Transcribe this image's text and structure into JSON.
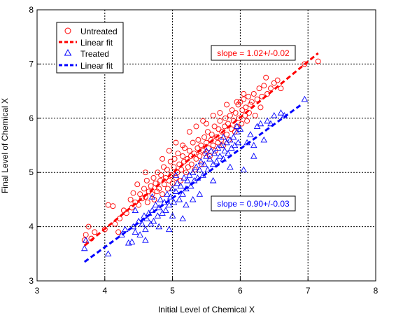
{
  "chart_data": {
    "type": "scatter",
    "xlabel": "Initial Level of Chemical X",
    "ylabel": "Final Level of Chemical X",
    "xlim": [
      3,
      8
    ],
    "ylim": [
      3,
      8
    ],
    "xticks": [
      "3",
      "4",
      "5",
      "6",
      "7",
      "8"
    ],
    "yticks": [
      "3",
      "4",
      "5",
      "6",
      "7",
      "8"
    ],
    "grid": true,
    "legend_position": "top-left",
    "legend": [
      {
        "label": "Untreated",
        "kind": "marker",
        "marker": "circle",
        "color": "#ff0000"
      },
      {
        "label": "Linear fit",
        "kind": "line",
        "color": "#ff0000"
      },
      {
        "label": "Treated",
        "kind": "marker",
        "marker": "triangle",
        "color": "#0000ff"
      },
      {
        "label": "Linear fit",
        "kind": "line",
        "color": "#0000ff"
      }
    ],
    "annotations": [
      {
        "text": "slope = 1.02+/-0.02",
        "color": "#ff0000",
        "x": 6.62,
        "y": 7.22
      },
      {
        "text": "slope = 0.90+/-0.03",
        "color": "#0000ff",
        "x": 6.62,
        "y": 4.44
      }
    ],
    "series": [
      {
        "name": "Untreated",
        "marker": "circle",
        "color": "#ff0000",
        "fit": {
          "x": [
            3.7,
            7.15
          ],
          "y": [
            3.65,
            7.2
          ]
        },
        "points": [
          [
            3.7,
            3.75
          ],
          [
            3.72,
            3.85
          ],
          [
            3.76,
            4.0
          ],
          [
            3.8,
            3.78
          ],
          [
            3.85,
            3.9
          ],
          [
            4.0,
            3.95
          ],
          [
            4.05,
            4.4
          ],
          [
            4.12,
            4.38
          ],
          [
            4.15,
            4.05
          ],
          [
            4.2,
            3.9
          ],
          [
            4.22,
            4.15
          ],
          [
            4.28,
            4.3
          ],
          [
            4.32,
            4.25
          ],
          [
            4.38,
            4.5
          ],
          [
            4.4,
            4.35
          ],
          [
            4.42,
            4.62
          ],
          [
            4.45,
            4.45
          ],
          [
            4.48,
            4.78
          ],
          [
            4.5,
            4.4
          ],
          [
            4.52,
            4.6
          ],
          [
            4.55,
            4.52
          ],
          [
            4.58,
            4.7
          ],
          [
            4.6,
            4.55
          ],
          [
            4.62,
            4.85
          ],
          [
            4.63,
            4.45
          ],
          [
            4.65,
            4.65
          ],
          [
            4.68,
            4.75
          ],
          [
            4.7,
            4.6
          ],
          [
            4.72,
            4.9
          ],
          [
            4.73,
            4.5
          ],
          [
            4.75,
            4.8
          ],
          [
            4.77,
            4.65
          ],
          [
            4.78,
            5.0
          ],
          [
            4.8,
            4.7
          ],
          [
            4.82,
            4.85
          ],
          [
            4.83,
            4.95
          ],
          [
            4.85,
            4.6
          ],
          [
            4.87,
            5.1
          ],
          [
            4.88,
            4.78
          ],
          [
            4.9,
            4.9
          ],
          [
            4.92,
            5.05
          ],
          [
            4.93,
            4.7
          ],
          [
            4.95,
            4.85
          ],
          [
            4.97,
            5.2
          ],
          [
            4.98,
            4.95
          ],
          [
            5.0,
            4.8
          ],
          [
            5.02,
            5.1
          ],
          [
            5.03,
            5.25
          ],
          [
            5.05,
            4.9
          ],
          [
            5.07,
            5.0
          ],
          [
            5.08,
            5.35
          ],
          [
            5.1,
            5.15
          ],
          [
            5.12,
            4.85
          ],
          [
            5.13,
            5.05
          ],
          [
            5.15,
            5.3
          ],
          [
            5.17,
            5.2
          ],
          [
            5.18,
            5.45
          ],
          [
            5.2,
            5.0
          ],
          [
            5.22,
            5.25
          ],
          [
            5.23,
            5.1
          ],
          [
            5.25,
            5.4
          ],
          [
            5.27,
            5.3
          ],
          [
            5.28,
            5.15
          ],
          [
            5.3,
            5.55
          ],
          [
            5.32,
            5.35
          ],
          [
            5.33,
            5.05
          ],
          [
            5.35,
            5.25
          ],
          [
            5.37,
            5.45
          ],
          [
            5.38,
            5.6
          ],
          [
            5.4,
            5.3
          ],
          [
            5.42,
            5.5
          ],
          [
            5.43,
            5.15
          ],
          [
            5.45,
            5.4
          ],
          [
            5.47,
            5.65
          ],
          [
            5.48,
            5.35
          ],
          [
            5.5,
            5.55
          ],
          [
            5.52,
            5.75
          ],
          [
            5.53,
            5.45
          ],
          [
            5.55,
            5.3
          ],
          [
            5.57,
            5.6
          ],
          [
            5.58,
            5.7
          ],
          [
            5.6,
            5.5
          ],
          [
            5.62,
            5.85
          ],
          [
            5.63,
            5.4
          ],
          [
            5.65,
            5.65
          ],
          [
            5.67,
            5.55
          ],
          [
            5.68,
            5.8
          ],
          [
            5.7,
            5.95
          ],
          [
            5.72,
            5.6
          ],
          [
            5.73,
            5.75
          ],
          [
            5.75,
            5.5
          ],
          [
            5.77,
            5.85
          ],
          [
            5.78,
            6.0
          ],
          [
            5.8,
            5.7
          ],
          [
            5.82,
            5.9
          ],
          [
            5.83,
            5.6
          ],
          [
            5.85,
            6.05
          ],
          [
            5.87,
            5.8
          ],
          [
            5.88,
            6.15
          ],
          [
            5.9,
            5.95
          ],
          [
            5.92,
            5.75
          ],
          [
            5.93,
            6.1
          ],
          [
            5.95,
            5.85
          ],
          [
            5.97,
            6.25
          ],
          [
            5.98,
            6.0
          ],
          [
            6.0,
            6.3
          ],
          [
            6.02,
            5.9
          ],
          [
            6.03,
            6.15
          ],
          [
            6.05,
            6.35
          ],
          [
            6.07,
            6.05
          ],
          [
            6.08,
            6.2
          ],
          [
            6.1,
            5.95
          ],
          [
            6.12,
            6.4
          ],
          [
            6.13,
            6.1
          ],
          [
            6.15,
            6.25
          ],
          [
            6.17,
            6.3
          ],
          [
            6.2,
            6.45
          ],
          [
            6.22,
            6.05
          ],
          [
            6.25,
            6.35
          ],
          [
            6.28,
            6.55
          ],
          [
            6.3,
            6.2
          ],
          [
            6.32,
            6.4
          ],
          [
            6.35,
            6.6
          ],
          [
            6.38,
            6.75
          ],
          [
            6.4,
            6.45
          ],
          [
            6.45,
            6.55
          ],
          [
            6.5,
            6.65
          ],
          [
            6.55,
            6.7
          ],
          [
            6.6,
            6.55
          ],
          [
            6.95,
            7.0
          ],
          [
            7.15,
            7.05
          ],
          [
            5.05,
            5.55
          ],
          [
            4.95,
            5.4
          ],
          [
            5.25,
            5.75
          ],
          [
            5.45,
            5.95
          ],
          [
            5.6,
            6.05
          ],
          [
            5.35,
            5.85
          ],
          [
            5.15,
            5.5
          ],
          [
            4.85,
            5.25
          ],
          [
            4.6,
            5.0
          ],
          [
            5.8,
            6.25
          ],
          [
            5.7,
            6.1
          ],
          [
            5.5,
            5.9
          ],
          [
            6.05,
            6.45
          ],
          [
            5.95,
            6.3
          ]
        ]
      },
      {
        "name": "Treated",
        "marker": "triangle",
        "color": "#0000ff",
        "fit": {
          "x": [
            3.7,
            6.9
          ],
          "y": [
            3.35,
            6.25
          ]
        },
        "points": [
          [
            3.7,
            3.6
          ],
          [
            3.72,
            3.75
          ],
          [
            4.05,
            3.5
          ],
          [
            4.25,
            3.85
          ],
          [
            4.3,
            3.95
          ],
          [
            4.35,
            3.7
          ],
          [
            4.4,
            3.72
          ],
          [
            4.42,
            4.0
          ],
          [
            4.45,
            3.9
          ],
          [
            4.5,
            4.1
          ],
          [
            4.52,
            3.85
          ],
          [
            4.55,
            4.05
          ],
          [
            4.58,
            4.2
          ],
          [
            4.6,
            3.95
          ],
          [
            4.62,
            4.15
          ],
          [
            4.65,
            4.25
          ],
          [
            4.68,
            4.05
          ],
          [
            4.7,
            4.3
          ],
          [
            4.72,
            4.1
          ],
          [
            4.75,
            4.4
          ],
          [
            4.78,
            4.2
          ],
          [
            4.8,
            4.35
          ],
          [
            4.82,
            4.5
          ],
          [
            4.85,
            4.25
          ],
          [
            4.88,
            4.45
          ],
          [
            4.9,
            4.3
          ],
          [
            4.92,
            4.6
          ],
          [
            4.95,
            4.4
          ],
          [
            4.97,
            4.55
          ],
          [
            5.0,
            4.7
          ],
          [
            5.02,
            4.45
          ],
          [
            5.05,
            4.65
          ],
          [
            5.07,
            4.8
          ],
          [
            5.1,
            4.5
          ],
          [
            5.12,
            4.75
          ],
          [
            5.15,
            4.6
          ],
          [
            5.17,
            4.9
          ],
          [
            5.2,
            4.7
          ],
          [
            5.22,
            4.85
          ],
          [
            5.25,
            4.95
          ],
          [
            5.27,
            4.75
          ],
          [
            5.3,
            5.0
          ],
          [
            5.32,
            4.85
          ],
          [
            5.35,
            5.1
          ],
          [
            5.37,
            4.9
          ],
          [
            5.4,
            5.05
          ],
          [
            5.42,
            5.2
          ],
          [
            5.45,
            4.95
          ],
          [
            5.47,
            5.15
          ],
          [
            5.5,
            5.3
          ],
          [
            5.52,
            5.05
          ],
          [
            5.55,
            5.25
          ],
          [
            5.57,
            5.4
          ],
          [
            5.6,
            5.15
          ],
          [
            5.62,
            5.35
          ],
          [
            5.65,
            5.2
          ],
          [
            5.67,
            5.45
          ],
          [
            5.7,
            5.3
          ],
          [
            5.72,
            5.5
          ],
          [
            5.75,
            5.25
          ],
          [
            5.77,
            5.4
          ],
          [
            5.8,
            5.55
          ],
          [
            5.82,
            5.35
          ],
          [
            5.85,
            5.6
          ],
          [
            5.87,
            5.45
          ],
          [
            5.9,
            5.65
          ],
          [
            5.92,
            5.5
          ],
          [
            5.95,
            5.75
          ],
          [
            5.97,
            5.55
          ],
          [
            6.0,
            5.8
          ],
          [
            6.05,
            5.05
          ],
          [
            6.1,
            5.55
          ],
          [
            6.15,
            5.7
          ],
          [
            6.2,
            5.5
          ],
          [
            6.25,
            5.85
          ],
          [
            6.3,
            5.9
          ],
          [
            6.35,
            5.6
          ],
          [
            6.4,
            5.95
          ],
          [
            6.45,
            5.9
          ],
          [
            6.5,
            6.05
          ],
          [
            6.6,
            6.1
          ],
          [
            6.65,
            6.05
          ],
          [
            6.95,
            6.35
          ],
          [
            4.6,
            3.75
          ],
          [
            4.8,
            4.0
          ],
          [
            5.0,
            4.2
          ],
          [
            5.2,
            4.4
          ],
          [
            5.4,
            4.6
          ],
          [
            5.15,
            4.15
          ],
          [
            4.95,
            3.95
          ],
          [
            5.6,
            4.85
          ],
          [
            5.85,
            5.1
          ],
          [
            6.2,
            5.3
          ],
          [
            5.3,
            4.5
          ],
          [
            4.7,
            4.55
          ],
          [
            5.05,
            4.95
          ],
          [
            5.5,
            5.4
          ],
          [
            5.75,
            5.65
          ],
          [
            4.45,
            4.3
          ],
          [
            5.95,
            5.85
          ]
        ]
      }
    ]
  }
}
